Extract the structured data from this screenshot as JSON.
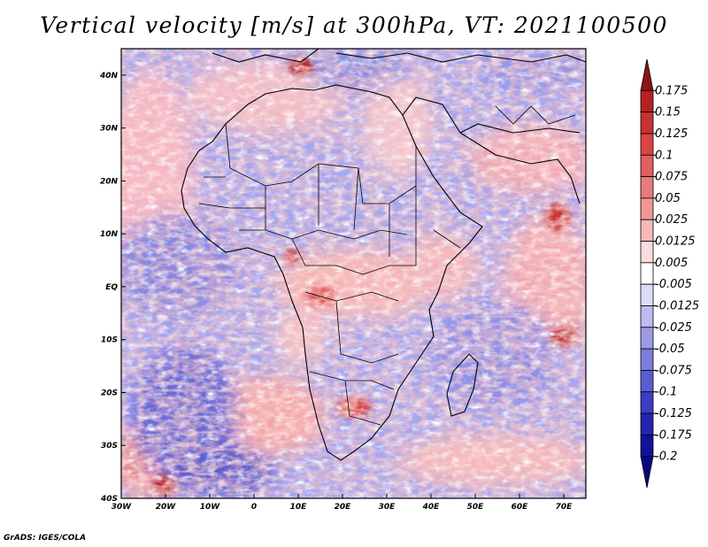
{
  "title": "Vertical velocity [m/s] at 300hPa, VT: 2021100500",
  "footer": "GrADS: IGES/COLA",
  "map": {
    "variable": "Vertical velocity",
    "units": "m/s",
    "level": "300hPa",
    "valid_time": "2021100500",
    "lon_range": [
      -30,
      75
    ],
    "lat_range": [
      -40,
      45
    ],
    "lon_ticks": [
      "30W",
      "20W",
      "10W",
      "0",
      "10E",
      "20E",
      "30E",
      "40E",
      "50E",
      "60E",
      "70E"
    ],
    "lon_tick_values": [
      -30,
      -20,
      -10,
      0,
      10,
      20,
      30,
      40,
      50,
      60,
      70
    ],
    "lat_ticks": [
      "40N",
      "30N",
      "20N",
      "10N",
      "EQ",
      "10S",
      "20S",
      "30S",
      "40S"
    ],
    "lat_tick_values": [
      40,
      30,
      20,
      10,
      0,
      -10,
      -20,
      -30,
      -40
    ]
  },
  "colorbar": {
    "labels": [
      "0.175",
      "0.15",
      "0.125",
      "0.1",
      "0.075",
      "0.05",
      "0.025",
      "0.0125",
      "0.005",
      "-0.005",
      "-0.0125",
      "-0.025",
      "-0.05",
      "-0.075",
      "-0.1",
      "-0.125",
      "-0.175",
      "-0.2"
    ],
    "colors": [
      "#8c1414",
      "#b42323",
      "#c83232",
      "#d94545",
      "#e06060",
      "#e87a7a",
      "#f09696",
      "#f6b8b8",
      "#fbdcdc",
      "#ffffff",
      "#dcdcf8",
      "#bcbcf0",
      "#9c9ce6",
      "#7c7cdc",
      "#5c5cd0",
      "#3c3cc4",
      "#2424b0",
      "#12129a",
      "#060680"
    ]
  }
}
